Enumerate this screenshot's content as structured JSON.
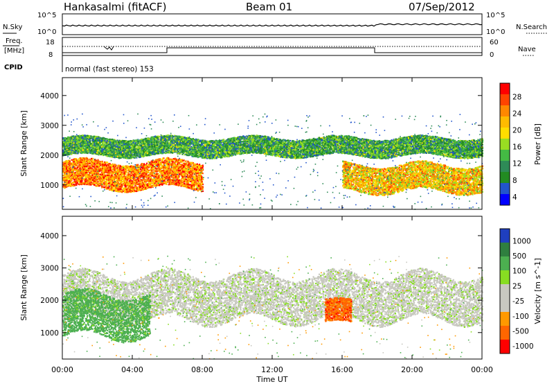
{
  "header": {
    "title": "Hankasalmi (fitACF)",
    "beam": "Beam 01",
    "date": "07/Sep/2012"
  },
  "sky_panel": {
    "left_label": "N.Sky",
    "right_label": "N.Search",
    "left_ticks": [
      "10^5",
      "10^0"
    ],
    "right_ticks": [
      "10^5",
      "10^0"
    ]
  },
  "freq_panel": {
    "left_label_1": "Freq.",
    "left_label_2": "[MHz]",
    "right_label": "Nave",
    "left_ticks": [
      "18",
      "8"
    ],
    "right_ticks": [
      "60",
      "0"
    ]
  },
  "cpid": {
    "label": "CPID",
    "mode": "normal (fast stereo) 153"
  },
  "chart_data": [
    {
      "type": "heatmap",
      "quantity": "Power",
      "ylabel": "Slant Range [km]",
      "xlabel": "Time UT",
      "xlim": [
        "00:00",
        "24:00"
      ],
      "ylim": [
        180,
        4600
      ],
      "y_ticks": [
        1000,
        2000,
        3000,
        4000
      ],
      "colorbar": {
        "label": "Power [dB]",
        "ticks": [
          "28",
          "24",
          "20",
          "16",
          "12",
          "8",
          "4"
        ],
        "colors": [
          "#ff0000",
          "#ff4400",
          "#ff8800",
          "#ffbb00",
          "#ffdd00",
          "#99dd22",
          "#44bb44",
          "#2e8b57",
          "#228b22",
          "#2255cc",
          "#0000ff"
        ]
      },
      "bands": [
        {
          "name": "upper band",
          "t_start": 0.0,
          "t_end": 24.0,
          "range_km": [
            2000,
            2600
          ],
          "power_db": 10
        },
        {
          "name": "lower band",
          "t_start": 0.0,
          "t_end": 8.0,
          "range_km": [
            900,
            1800
          ],
          "power_db": 24
        },
        {
          "name": "late lower band",
          "t_start": 16.0,
          "t_end": 24.0,
          "range_km": [
            800,
            1700
          ],
          "power_db": 20
        }
      ]
    },
    {
      "type": "heatmap",
      "quantity": "Velocity",
      "ylabel": "Slant Range [km]",
      "xlabel": "Time UT",
      "xlim": [
        "00:00",
        "24:00"
      ],
      "ylim": [
        180,
        4600
      ],
      "y_ticks": [
        1000,
        2000,
        3000,
        4000
      ],
      "colorbar": {
        "label": "Velocity [m s^-1]",
        "ticks": [
          "1000",
          "500",
          "100",
          "25",
          "-25",
          "-100",
          "-500",
          "-1000"
        ],
        "colors": [
          "#1f3fbf",
          "#2f7f3f",
          "#4caf50",
          "#88dd22",
          "#c8c8c0",
          "#c8c8c0",
          "#ff9900",
          "#ff6600",
          "#ff0000"
        ]
      },
      "bands": [
        {
          "name": "ground scatter",
          "t_start": 0.0,
          "t_end": 24.0,
          "range_km": [
            1400,
            2800
          ],
          "velocity": 0
        },
        {
          "name": "toward radar",
          "t_start": 0.0,
          "t_end": 5.0,
          "range_km": [
            900,
            2200
          ],
          "velocity": 150
        },
        {
          "name": "away from radar",
          "t_start": 15.0,
          "t_end": 16.5,
          "range_km": [
            1300,
            2000
          ],
          "velocity": -500
        }
      ]
    }
  ],
  "x_axis": {
    "ticks": [
      "00:00",
      "04:00",
      "08:00",
      "12:00",
      "16:00",
      "20:00",
      "00:00"
    ],
    "label": "Time UT"
  }
}
